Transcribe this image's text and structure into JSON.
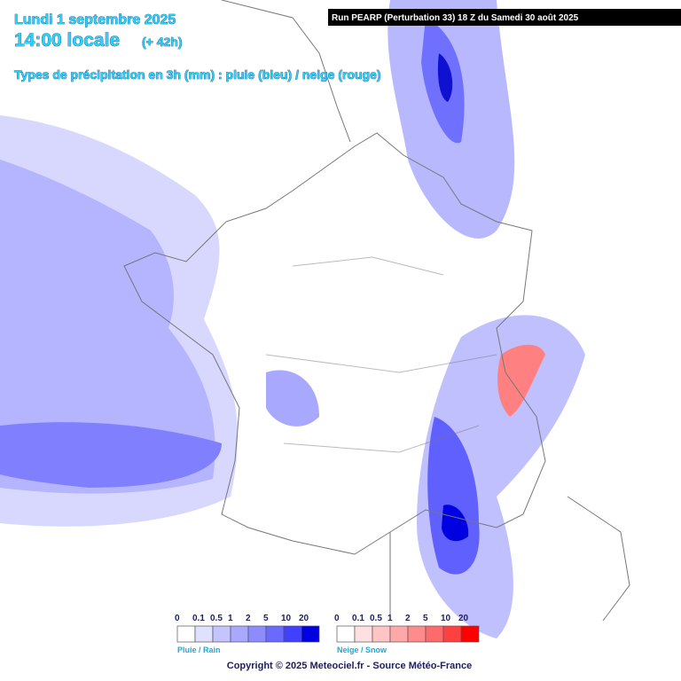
{
  "header": {
    "date": "Lundi 1 septembre 2025",
    "time": "14:00 locale",
    "lead": "(+ 42h)",
    "subtitle": "Types de précipitation en 3h (mm) : pluie (bleu) / neige (rouge)",
    "run": "Run PEARP (Perturbation 33) 18 Z du Samedi 30 août 2025"
  },
  "legend": {
    "rain": {
      "caption": "Pluie / Rain",
      "labels": [
        "0",
        "0.1",
        "0.5",
        "1",
        "2",
        "5",
        "10",
        "20"
      ],
      "colors": [
        "#ffffff",
        "#e0e0ff",
        "#c4c4ff",
        "#a8a8ff",
        "#8c8cff",
        "#6a6aff",
        "#4040ff",
        "#0000e0"
      ]
    },
    "snow": {
      "caption": "Neige / Snow",
      "labels": [
        "0",
        "0.1",
        "0.5",
        "1",
        "2",
        "5",
        "10",
        "20"
      ],
      "colors": [
        "#ffffff",
        "#ffe0e0",
        "#ffc4c4",
        "#ffa8a8",
        "#ff8c8c",
        "#ff6a6a",
        "#ff4040",
        "#ff0000"
      ]
    }
  },
  "footer": {
    "copyright": "Copyright © 2025 Meteociel.fr - Source Météo-France"
  }
}
